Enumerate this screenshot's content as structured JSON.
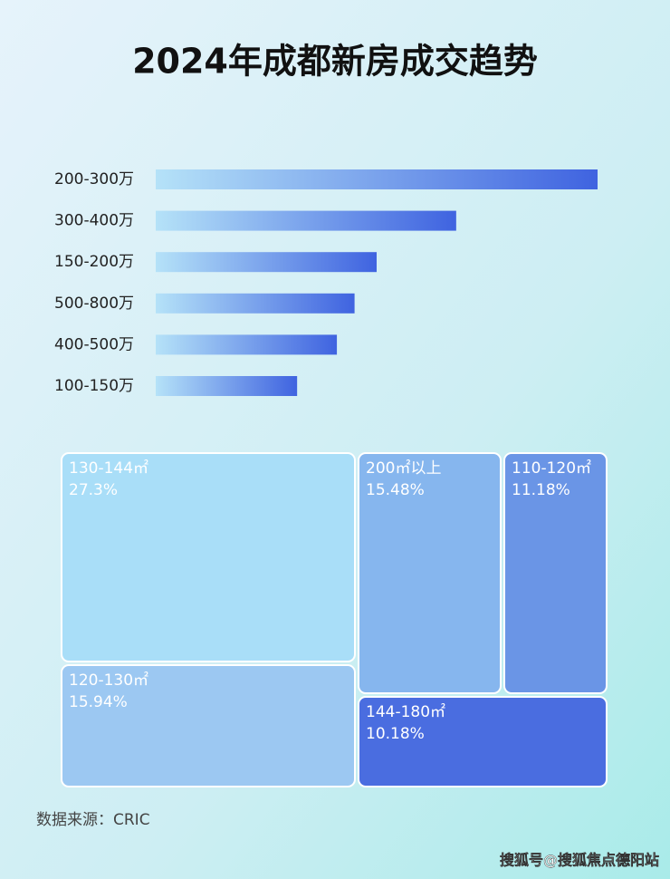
{
  "chart_data": [
    {
      "type": "bar",
      "orientation": "horizontal",
      "title": "2024年成都新房成交趋势",
      "categories": [
        "200-300万",
        "300-400万",
        "150-200万",
        "500-800万",
        "400-500万",
        "100-150万"
      ],
      "values": [
        100,
        68,
        50,
        45,
        41,
        32
      ],
      "color": "#3f63e0"
    },
    {
      "type": "treemap",
      "categories": [
        "130-144㎡",
        "200㎡以上",
        "110-120㎡",
        "120-130㎡",
        "144-180㎡"
      ],
      "values": [
        27.3,
        15.48,
        11.18,
        15.94,
        10.18
      ],
      "value_labels": [
        "27.3%",
        "15.48%",
        "11.18%",
        "15.94%",
        "10.18%"
      ],
      "colors": [
        "#a9def8",
        "#86b6ee",
        "#6a95e6",
        "#9cc8f2",
        "#4a6de0"
      ]
    }
  ],
  "source": "数据来源：CRIC",
  "watermark": "搜狐号@搜狐焦点德阳站"
}
